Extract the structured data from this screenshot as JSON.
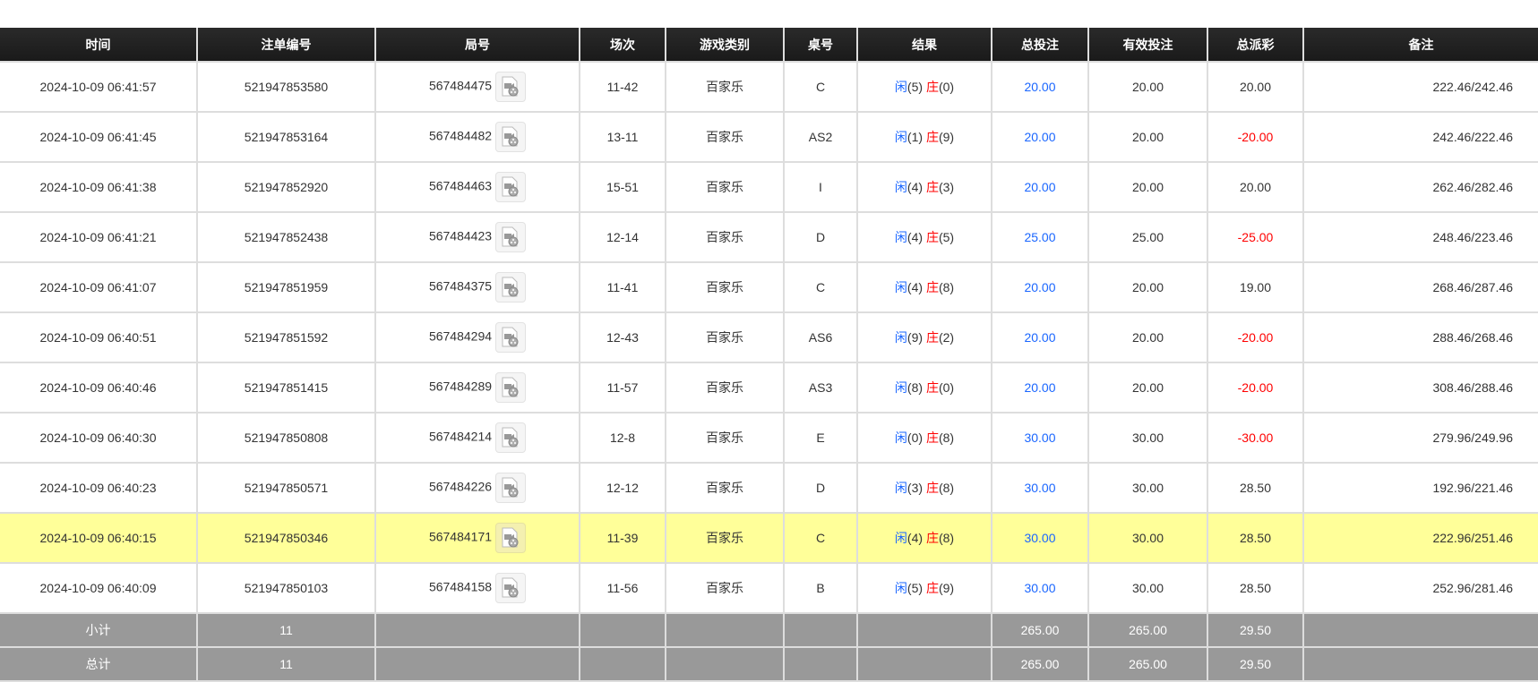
{
  "headers": [
    "时间",
    "注单编号",
    "局号",
    "场次",
    "游戏类别",
    "桌号",
    "结果",
    "总投注",
    "有效投注",
    "总派彩",
    "备注"
  ],
  "colors": {
    "player": "#1a66ff",
    "banker": "#ff0000",
    "highlight": "#ffff99",
    "summary": "#999999"
  },
  "rows": [
    {
      "time": "2024-10-09 06:41:57",
      "bet_id": "521947853580",
      "round": "567484475",
      "session": "11-42",
      "game": "百家乐",
      "table": "C",
      "player_label": "闲",
      "player": "(5)",
      "banker_label": "庄",
      "banker": "(0)",
      "total": "20.00",
      "valid": "20.00",
      "payout": "20.00",
      "payout_negative": false,
      "note": "222.46/242.46"
    },
    {
      "time": "2024-10-09 06:41:45",
      "bet_id": "521947853164",
      "round": "567484482",
      "session": "13-11",
      "game": "百家乐",
      "table": "AS2",
      "player_label": "闲",
      "player": "(1)",
      "banker_label": "庄",
      "banker": "(9)",
      "total": "20.00",
      "valid": "20.00",
      "payout": "-20.00",
      "payout_negative": true,
      "note": "242.46/222.46"
    },
    {
      "time": "2024-10-09 06:41:38",
      "bet_id": "521947852920",
      "round": "567484463",
      "session": "15-51",
      "game": "百家乐",
      "table": "I",
      "player_label": "闲",
      "player": "(4)",
      "banker_label": "庄",
      "banker": "(3)",
      "total": "20.00",
      "valid": "20.00",
      "payout": "20.00",
      "payout_negative": false,
      "note": "262.46/282.46"
    },
    {
      "time": "2024-10-09 06:41:21",
      "bet_id": "521947852438",
      "round": "567484423",
      "session": "12-14",
      "game": "百家乐",
      "table": "D",
      "player_label": "闲",
      "player": "(4)",
      "banker_label": "庄",
      "banker": "(5)",
      "total": "25.00",
      "valid": "25.00",
      "payout": "-25.00",
      "payout_negative": true,
      "note": "248.46/223.46"
    },
    {
      "time": "2024-10-09 06:41:07",
      "bet_id": "521947851959",
      "round": "567484375",
      "session": "11-41",
      "game": "百家乐",
      "table": "C",
      "player_label": "闲",
      "player": "(4)",
      "banker_label": "庄",
      "banker": "(8)",
      "total": "20.00",
      "valid": "20.00",
      "payout": "19.00",
      "payout_negative": false,
      "note": "268.46/287.46"
    },
    {
      "time": "2024-10-09 06:40:51",
      "bet_id": "521947851592",
      "round": "567484294",
      "session": "12-43",
      "game": "百家乐",
      "table": "AS6",
      "player_label": "闲",
      "player": "(9)",
      "banker_label": "庄",
      "banker": "(2)",
      "total": "20.00",
      "valid": "20.00",
      "payout": "-20.00",
      "payout_negative": true,
      "note": "288.46/268.46"
    },
    {
      "time": "2024-10-09 06:40:46",
      "bet_id": "521947851415",
      "round": "567484289",
      "session": "11-57",
      "game": "百家乐",
      "table": "AS3",
      "player_label": "闲",
      "player": "(8)",
      "banker_label": "庄",
      "banker": "(0)",
      "total": "20.00",
      "valid": "20.00",
      "payout": "-20.00",
      "payout_negative": true,
      "note": "308.46/288.46"
    },
    {
      "time": "2024-10-09 06:40:30",
      "bet_id": "521947850808",
      "round": "567484214",
      "session": "12-8",
      "game": "百家乐",
      "table": "E",
      "player_label": "闲",
      "player": "(0)",
      "banker_label": "庄",
      "banker": "(8)",
      "total": "30.00",
      "valid": "30.00",
      "payout": "-30.00",
      "payout_negative": true,
      "note": "279.96/249.96"
    },
    {
      "time": "2024-10-09 06:40:23",
      "bet_id": "521947850571",
      "round": "567484226",
      "session": "12-12",
      "game": "百家乐",
      "table": "D",
      "player_label": "闲",
      "player": "(3)",
      "banker_label": "庄",
      "banker": "(8)",
      "total": "30.00",
      "valid": "30.00",
      "payout": "28.50",
      "payout_negative": false,
      "note": "192.96/221.46"
    },
    {
      "time": "2024-10-09 06:40:15",
      "bet_id": "521947850346",
      "round": "567484171",
      "session": "11-39",
      "game": "百家乐",
      "table": "C",
      "player_label": "闲",
      "player": "(4)",
      "banker_label": "庄",
      "banker": "(8)",
      "total": "30.00",
      "valid": "30.00",
      "payout": "28.50",
      "payout_negative": false,
      "note": "222.96/251.46",
      "highlighted": true
    },
    {
      "time": "2024-10-09 06:40:09",
      "bet_id": "521947850103",
      "round": "567484158",
      "session": "11-56",
      "game": "百家乐",
      "table": "B",
      "player_label": "闲",
      "player": "(5)",
      "banker_label": "庄",
      "banker": "(9)",
      "total": "30.00",
      "valid": "30.00",
      "payout": "28.50",
      "payout_negative": false,
      "note": "252.96/281.46"
    }
  ],
  "subtotal": {
    "label": "小计",
    "count": "11",
    "total": "265.00",
    "valid": "265.00",
    "payout": "29.50"
  },
  "grand_total": {
    "label": "总计",
    "count": "11",
    "total": "265.00",
    "valid": "265.00",
    "payout": "29.50"
  }
}
